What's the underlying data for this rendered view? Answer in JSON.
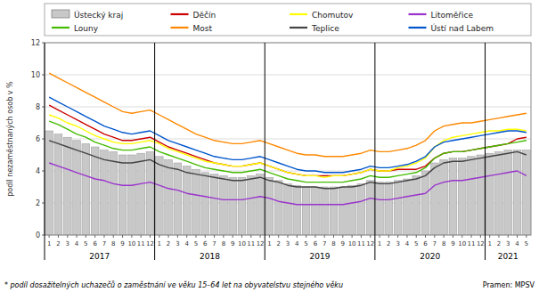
{
  "chart_data": {
    "type": "bar",
    "ylabel": "podíl nezaměstnaných osob v %",
    "ylim": [
      0,
      12
    ],
    "yticks": [
      0,
      2,
      4,
      6,
      8,
      10,
      12
    ],
    "grid": true,
    "legend": "top",
    "footnote": "* podíl dosažitelných uchazečů o zaměstnání ve věku 15–64 let na obyvatelstvu  stejného věku",
    "source": "Pramen: MPSV",
    "annotations": [
      "2017",
      "2018",
      "2019",
      "2020",
      "2021"
    ],
    "categories": [
      "1",
      "2",
      "3",
      "4",
      "5",
      "6",
      "7",
      "8",
      "9",
      "10",
      "11",
      "12",
      "1",
      "2",
      "3",
      "4",
      "5",
      "6",
      "7",
      "8",
      "9",
      "10",
      "11",
      "12",
      "1",
      "2",
      "3",
      "4",
      "5",
      "6",
      "7",
      "8",
      "9",
      "10",
      "11",
      "12",
      "1",
      "2",
      "3",
      "4",
      "5",
      "6",
      "7",
      "8",
      "9",
      "10",
      "11",
      "12",
      "1",
      "2",
      "3",
      "4",
      "5"
    ],
    "series": [
      {
        "name": "Ústecký kraj",
        "type": "bar",
        "color": "#c8c8c8",
        "values": [
          6.5,
          6.3,
          6.1,
          5.9,
          5.7,
          5.5,
          5.3,
          5.2,
          5.0,
          5.0,
          5.1,
          5.2,
          4.9,
          4.7,
          4.5,
          4.3,
          4.1,
          3.9,
          3.8,
          3.7,
          3.6,
          3.6,
          3.7,
          3.8,
          3.6,
          3.4,
          3.2,
          3.1,
          3.0,
          3.0,
          3.0,
          3.0,
          3.0,
          3.1,
          3.2,
          3.4,
          3.3,
          3.3,
          3.4,
          3.5,
          3.7,
          4.0,
          4.5,
          4.7,
          4.8,
          4.8,
          4.9,
          5.0,
          5.1,
          5.2,
          5.3,
          5.3,
          5.3
        ]
      },
      {
        "name": "Děčín",
        "type": "line",
        "color": "#cc0000",
        "values": [
          8.1,
          7.8,
          7.5,
          7.2,
          6.9,
          6.6,
          6.3,
          6.1,
          5.9,
          5.9,
          6.0,
          6.1,
          5.8,
          5.5,
          5.3,
          5.1,
          4.9,
          4.7,
          4.5,
          4.4,
          4.3,
          4.3,
          4.4,
          4.5,
          4.3,
          4.1,
          3.9,
          3.8,
          3.7,
          3.7,
          3.7,
          3.7,
          3.7,
          3.8,
          3.9,
          4.1,
          4.0,
          4.0,
          4.1,
          4.1,
          4.1,
          4.3,
          4.8,
          5.1,
          5.2,
          5.2,
          5.3,
          5.4,
          5.5,
          5.6,
          5.7,
          6.0,
          6.1
        ]
      },
      {
        "name": "Chomutov",
        "type": "line",
        "color": "#ffff00",
        "values": [
          7.5,
          7.3,
          7.0,
          6.8,
          6.5,
          6.2,
          6.0,
          5.8,
          5.7,
          5.7,
          5.8,
          5.9,
          5.7,
          5.4,
          5.2,
          5.0,
          4.8,
          4.6,
          4.5,
          4.4,
          4.3,
          4.3,
          4.4,
          4.5,
          4.3,
          4.1,
          3.9,
          3.8,
          3.7,
          3.7,
          3.6,
          3.7,
          3.7,
          3.8,
          3.9,
          4.1,
          4.0,
          4.0,
          4.2,
          4.3,
          4.5,
          4.8,
          5.5,
          5.9,
          6.1,
          6.2,
          6.3,
          6.4,
          6.5,
          6.5,
          6.6,
          6.6,
          6.5
        ]
      },
      {
        "name": "Litoměřice",
        "type": "line",
        "color": "#9933cc",
        "values": [
          4.5,
          4.3,
          4.1,
          3.9,
          3.7,
          3.5,
          3.4,
          3.2,
          3.1,
          3.1,
          3.2,
          3.3,
          3.1,
          2.9,
          2.8,
          2.6,
          2.5,
          2.4,
          2.3,
          2.2,
          2.2,
          2.2,
          2.3,
          2.4,
          2.3,
          2.1,
          2.0,
          1.9,
          1.9,
          1.9,
          1.9,
          1.9,
          1.9,
          2.0,
          2.1,
          2.3,
          2.2,
          2.2,
          2.3,
          2.4,
          2.5,
          2.6,
          3.1,
          3.3,
          3.4,
          3.4,
          3.5,
          3.6,
          3.7,
          3.8,
          3.9,
          4.0,
          3.7
        ]
      },
      {
        "name": "Louny",
        "type": "line",
        "color": "#44bb00",
        "values": [
          7.1,
          6.9,
          6.6,
          6.3,
          6.1,
          5.8,
          5.6,
          5.4,
          5.3,
          5.3,
          5.4,
          5.5,
          5.2,
          5.0,
          4.8,
          4.6,
          4.4,
          4.2,
          4.1,
          4.0,
          3.9,
          3.9,
          4.0,
          4.1,
          3.9,
          3.7,
          3.5,
          3.4,
          3.3,
          3.3,
          3.3,
          3.3,
          3.3,
          3.4,
          3.5,
          3.7,
          3.6,
          3.6,
          3.7,
          3.8,
          3.9,
          4.2,
          4.8,
          5.1,
          5.2,
          5.2,
          5.3,
          5.4,
          5.5,
          5.6,
          5.7,
          5.8,
          5.9
        ]
      },
      {
        "name": "Most",
        "type": "line",
        "color": "#ff8800",
        "values": [
          10.1,
          9.8,
          9.5,
          9.2,
          8.9,
          8.6,
          8.3,
          8.0,
          7.7,
          7.6,
          7.7,
          7.8,
          7.5,
          7.2,
          6.9,
          6.6,
          6.3,
          6.1,
          5.9,
          5.8,
          5.7,
          5.7,
          5.8,
          5.9,
          5.7,
          5.5,
          5.3,
          5.1,
          5.0,
          5.0,
          4.9,
          4.9,
          4.9,
          5.0,
          5.1,
          5.3,
          5.2,
          5.2,
          5.3,
          5.4,
          5.6,
          5.9,
          6.5,
          6.8,
          6.9,
          7.0,
          7.0,
          7.1,
          7.2,
          7.3,
          7.4,
          7.5,
          7.6
        ]
      },
      {
        "name": "Teplice",
        "type": "line",
        "color": "#444444",
        "values": [
          5.9,
          5.7,
          5.5,
          5.3,
          5.1,
          4.9,
          4.7,
          4.6,
          4.5,
          4.5,
          4.6,
          4.7,
          4.4,
          4.2,
          4.1,
          3.9,
          3.8,
          3.7,
          3.6,
          3.5,
          3.4,
          3.4,
          3.5,
          3.6,
          3.4,
          3.3,
          3.1,
          3.0,
          3.0,
          3.0,
          2.9,
          2.9,
          3.0,
          3.0,
          3.1,
          3.3,
          3.2,
          3.2,
          3.3,
          3.4,
          3.5,
          3.7,
          4.2,
          4.5,
          4.6,
          4.6,
          4.7,
          4.8,
          4.9,
          5.0,
          5.1,
          5.2,
          5.0
        ]
      },
      {
        "name": "Ústí nad Labem",
        "type": "line",
        "color": "#0055cc",
        "values": [
          8.6,
          8.3,
          8.0,
          7.7,
          7.4,
          7.1,
          6.8,
          6.6,
          6.4,
          6.3,
          6.4,
          6.5,
          6.2,
          5.9,
          5.7,
          5.5,
          5.3,
          5.1,
          4.9,
          4.8,
          4.7,
          4.7,
          4.8,
          4.9,
          4.7,
          4.5,
          4.3,
          4.1,
          4.0,
          4.0,
          3.9,
          3.9,
          3.9,
          4.0,
          4.1,
          4.3,
          4.2,
          4.2,
          4.3,
          4.4,
          4.6,
          4.9,
          5.5,
          5.8,
          5.9,
          6.0,
          6.1,
          6.2,
          6.3,
          6.4,
          6.5,
          6.5,
          6.4
        ]
      }
    ]
  }
}
